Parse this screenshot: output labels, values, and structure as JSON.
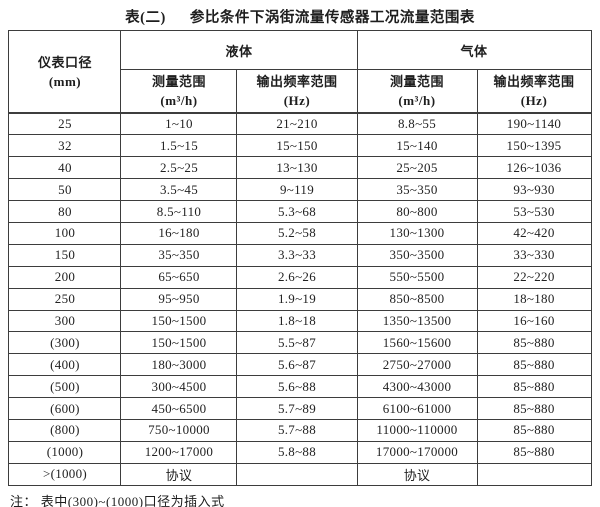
{
  "title": {
    "prefix": "表(二)",
    "main": "参比条件下涡街流量传感器工况流量范围表"
  },
  "table": {
    "col1_header": {
      "line1": "仪表口径",
      "line2": "(mm)"
    },
    "groups": [
      {
        "label": "液体"
      },
      {
        "label": "气体"
      }
    ],
    "subheaders": [
      {
        "line1": "测量范围",
        "line2": "(m³/h)"
      },
      {
        "line1": "输出频率范围",
        "line2": "(Hz)"
      },
      {
        "line1": "测量范围",
        "line2": "(m³/h)"
      },
      {
        "line1": "输出频率范围",
        "line2": "(Hz)"
      }
    ],
    "rows": [
      {
        "diameter": "25",
        "liquid_range": "1~10",
        "liquid_freq": "21~210",
        "gas_range": "8.8~55",
        "gas_freq": "190~1140"
      },
      {
        "diameter": "32",
        "liquid_range": "1.5~15",
        "liquid_freq": "15~150",
        "gas_range": "15~140",
        "gas_freq": "150~1395"
      },
      {
        "diameter": "40",
        "liquid_range": "2.5~25",
        "liquid_freq": "13~130",
        "gas_range": "25~205",
        "gas_freq": "126~1036"
      },
      {
        "diameter": "50",
        "liquid_range": "3.5~45",
        "liquid_freq": "9~119",
        "gas_range": "35~350",
        "gas_freq": "93~930"
      },
      {
        "diameter": "80",
        "liquid_range": "8.5~110",
        "liquid_freq": "5.3~68",
        "gas_range": "80~800",
        "gas_freq": "53~530"
      },
      {
        "diameter": "100",
        "liquid_range": "16~180",
        "liquid_freq": "5.2~58",
        "gas_range": "130~1300",
        "gas_freq": "42~420"
      },
      {
        "diameter": "150",
        "liquid_range": "35~350",
        "liquid_freq": "3.3~33",
        "gas_range": "350~3500",
        "gas_freq": "33~330"
      },
      {
        "diameter": "200",
        "liquid_range": "65~650",
        "liquid_freq": "2.6~26",
        "gas_range": "550~5500",
        "gas_freq": "22~220"
      },
      {
        "diameter": "250",
        "liquid_range": "95~950",
        "liquid_freq": "1.9~19",
        "gas_range": "850~8500",
        "gas_freq": "18~180"
      },
      {
        "diameter": "300",
        "liquid_range": "150~1500",
        "liquid_freq": "1.8~18",
        "gas_range": "1350~13500",
        "gas_freq": "16~160"
      },
      {
        "diameter": "(300)",
        "liquid_range": "150~1500",
        "liquid_freq": "5.5~87",
        "gas_range": "1560~15600",
        "gas_freq": "85~880"
      },
      {
        "diameter": "(400)",
        "liquid_range": "180~3000",
        "liquid_freq": "5.6~87",
        "gas_range": "2750~27000",
        "gas_freq": "85~880"
      },
      {
        "diameter": "(500)",
        "liquid_range": "300~4500",
        "liquid_freq": "5.6~88",
        "gas_range": "4300~43000",
        "gas_freq": "85~880"
      },
      {
        "diameter": "(600)",
        "liquid_range": "450~6500",
        "liquid_freq": "5.7~89",
        "gas_range": "6100~61000",
        "gas_freq": "85~880"
      },
      {
        "diameter": "(800)",
        "liquid_range": "750~10000",
        "liquid_freq": "5.7~88",
        "gas_range": "11000~110000",
        "gas_freq": "85~880"
      },
      {
        "diameter": "(1000)",
        "liquid_range": "1200~17000",
        "liquid_freq": "5.8~88",
        "gas_range": "17000~170000",
        "gas_freq": "85~880"
      },
      {
        "diameter": ">(1000)",
        "liquid_range": "协议",
        "liquid_freq": "",
        "gas_range": "协议",
        "gas_freq": ""
      }
    ]
  },
  "note": "注： 表中(300)~(1000)口径为插入式"
}
